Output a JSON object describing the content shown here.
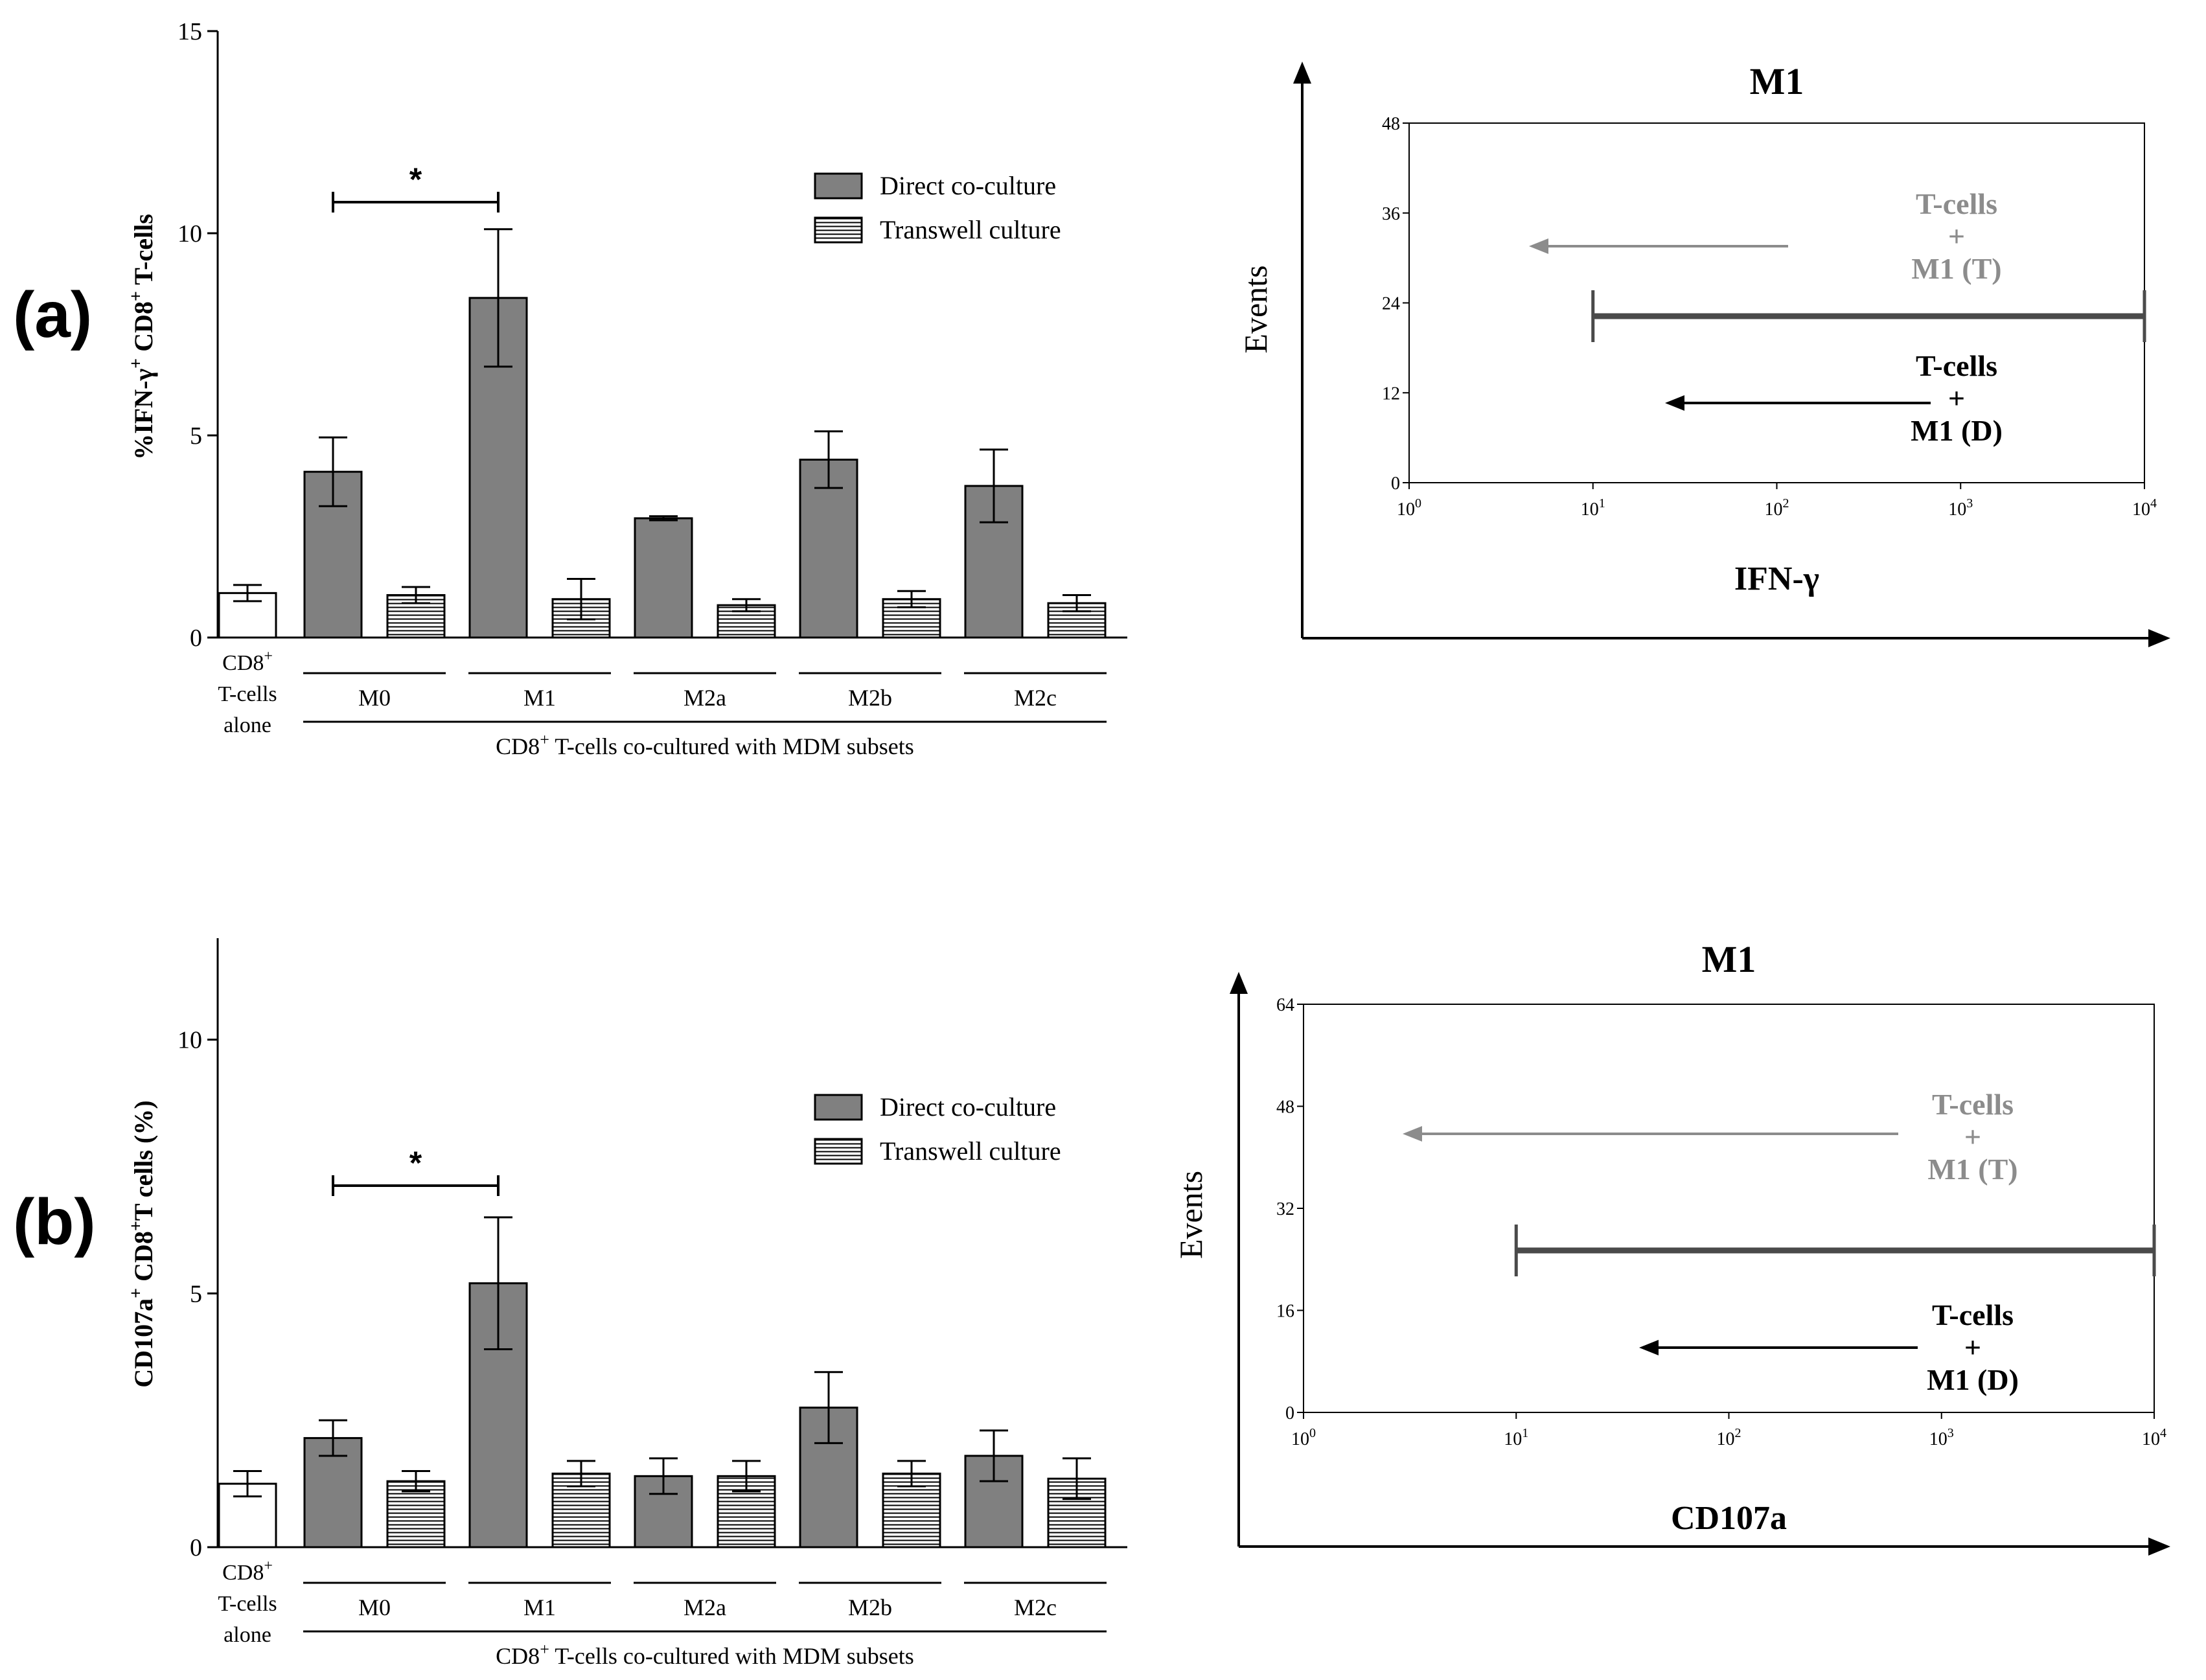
{
  "panels": [
    {
      "label": "(a)",
      "bar_chart": {
        "type": "bar",
        "ylabel_main": "%IFN-γ",
        "ylabel_sup1": "+",
        "ylabel_mid": " CD8",
        "ylabel_sup2": "+",
        "ylabel_end": " T-cells",
        "ylim": [
          0,
          15
        ],
        "yticks": [
          "0",
          "5",
          "10",
          "15"
        ],
        "ytick_values": [
          0,
          5,
          10,
          15
        ],
        "legend": [
          "Direct co-culture",
          "Transwell culture"
        ],
        "control": {
          "label_line1": "CD8",
          "label_sup": "+",
          "label_line2": "T-cells",
          "label_line3": "alone",
          "value": 1.1,
          "error": 0.2
        },
        "groups": [
          "M0",
          "M1",
          "M2a",
          "M2b",
          "M2c"
        ],
        "series": [
          {
            "name": "Direct co-culture",
            "values": [
              4.1,
              8.4,
              2.95,
              4.4,
              3.75
            ],
            "errors": [
              0.85,
              1.7,
              0.05,
              0.7,
              0.9
            ]
          },
          {
            "name": "Transwell culture",
            "values": [
              1.05,
              0.95,
              0.8,
              0.95,
              0.85
            ],
            "errors": [
              0.2,
              0.5,
              0.15,
              0.2,
              0.2
            ]
          }
        ],
        "significance": {
          "from": "M0",
          "to": "M1",
          "symbol": "*"
        },
        "xlabel_pre": "CD8",
        "xlabel_sup": "+",
        "xlabel_post": " T-cells co-cultured with MDM subsets"
      },
      "histogram": {
        "type": "area",
        "title": "M1",
        "ylabel": "Events",
        "xlabel": "IFN-γ",
        "yticks": [
          "0",
          "12",
          "24",
          "36",
          "48"
        ],
        "ytick_values": [
          0,
          12,
          24,
          36,
          48
        ],
        "xtick_base": "10",
        "xtick_exps": [
          "0",
          "1",
          "2",
          "3",
          "4"
        ],
        "annotation_grey": [
          "T-cells",
          "+",
          "M1 (T)"
        ],
        "annotation_black": [
          "T-cells",
          "+",
          "M1 (D)"
        ],
        "gate": {
          "from": 10,
          "to": 10000
        }
      }
    },
    {
      "label": "(b)",
      "bar_chart": {
        "type": "bar",
        "ylabel_main": "CD107a",
        "ylabel_sup1": "+",
        "ylabel_mid": " CD8",
        "ylabel_sup2": "+",
        "ylabel_end": "T cells (%)",
        "ylim": [
          0,
          12
        ],
        "yticks": [
          "0",
          "5",
          "10"
        ],
        "ytick_values": [
          0,
          5,
          10
        ],
        "legend": [
          "Direct co-culture",
          "Transwell culture"
        ],
        "control": {
          "label_line1": "CD8",
          "label_sup": "+",
          "label_line2": "T-cells",
          "label_line3": "alone",
          "value": 1.25,
          "error": 0.25
        },
        "groups": [
          "M0",
          "M1",
          "M2a",
          "M2b",
          "M2c"
        ],
        "series": [
          {
            "name": "Direct co-culture",
            "values": [
              2.15,
              5.2,
              1.4,
              2.75,
              1.8
            ],
            "errors": [
              0.35,
              1.3,
              0.35,
              0.7,
              0.5
            ]
          },
          {
            "name": "Transwell culture",
            "values": [
              1.3,
              1.45,
              1.4,
              1.45,
              1.35
            ],
            "errors": [
              0.2,
              0.25,
              0.3,
              0.25,
              0.4
            ]
          }
        ],
        "significance": {
          "from": "M0",
          "to": "M1",
          "symbol": "*"
        },
        "xlabel_pre": "CD8",
        "xlabel_sup": "+",
        "xlabel_post": " T-cells co-cultured with MDM subsets"
      },
      "histogram": {
        "type": "area",
        "title": "M1",
        "ylabel": "Events",
        "xlabel": "CD107a",
        "yticks": [
          "0",
          "16",
          "32",
          "48",
          "64"
        ],
        "ytick_values": [
          0,
          16,
          32,
          48,
          64
        ],
        "xtick_base": "10",
        "xtick_exps": [
          "0",
          "1",
          "2",
          "3",
          "4"
        ],
        "annotation_grey": [
          "T-cells",
          "+",
          "M1 (T)"
        ],
        "annotation_black": [
          "T-cells",
          "+",
          "M1 (D)"
        ],
        "gate": {
          "from": 10,
          "to": 10000
        }
      }
    }
  ],
  "chart_data": [
    {
      "type": "bar",
      "title": "",
      "ylabel": "%IFN-γ+ CD8+ T-cells",
      "xlabel": "CD8+ T-cells co-cultured with MDM subsets",
      "ylim": [
        0,
        15
      ],
      "categories": [
        "CD8+ T-cells alone",
        "M0",
        "M1",
        "M2a",
        "M2b",
        "M2c"
      ],
      "series": [
        {
          "name": "CD8+ T-cells alone",
          "values": [
            1.1,
            null,
            null,
            null,
            null,
            null
          ]
        },
        {
          "name": "Direct co-culture",
          "values": [
            null,
            4.1,
            8.4,
            2.95,
            4.4,
            3.75
          ]
        },
        {
          "name": "Transwell culture",
          "values": [
            null,
            1.05,
            0.95,
            0.8,
            0.95,
            0.85
          ]
        }
      ]
    },
    {
      "type": "area",
      "title": "M1",
      "xlabel": "IFN-γ",
      "ylabel": "Events",
      "xscale": "log",
      "xlim": [
        1,
        10000
      ],
      "ylim": [
        0,
        48
      ],
      "series": [
        {
          "name": "T-cells + M1 (T)",
          "color": "#808080"
        },
        {
          "name": "T-cells + M1 (D)",
          "color": "#000000"
        }
      ]
    },
    {
      "type": "bar",
      "title": "",
      "ylabel": "CD107a+ CD8+T cells (%)",
      "xlabel": "CD8+ T-cells co-cultured with MDM subsets",
      "ylim": [
        0,
        12
      ],
      "categories": [
        "CD8+ T-cells alone",
        "M0",
        "M1",
        "M2a",
        "M2b",
        "M2c"
      ],
      "series": [
        {
          "name": "CD8+ T-cells alone",
          "values": [
            1.25,
            null,
            null,
            null,
            null,
            null
          ]
        },
        {
          "name": "Direct co-culture",
          "values": [
            null,
            2.15,
            5.2,
            1.4,
            2.75,
            1.8
          ]
        },
        {
          "name": "Transwell culture",
          "values": [
            null,
            1.3,
            1.45,
            1.4,
            1.45,
            1.35
          ]
        }
      ]
    },
    {
      "type": "area",
      "title": "M1",
      "xlabel": "CD107a",
      "ylabel": "Events",
      "xscale": "log",
      "xlim": [
        1,
        10000
      ],
      "ylim": [
        0,
        64
      ],
      "series": [
        {
          "name": "T-cells + M1 (T)",
          "color": "#808080"
        },
        {
          "name": "T-cells + M1 (D)",
          "color": "#000000"
        }
      ]
    }
  ],
  "colors": {
    "direct": "#808080",
    "control": "#ffffff",
    "grey_trace": "#8c8c8c",
    "black_trace": "#000000",
    "axis": "#000000",
    "gate": "#4a4a4a"
  }
}
